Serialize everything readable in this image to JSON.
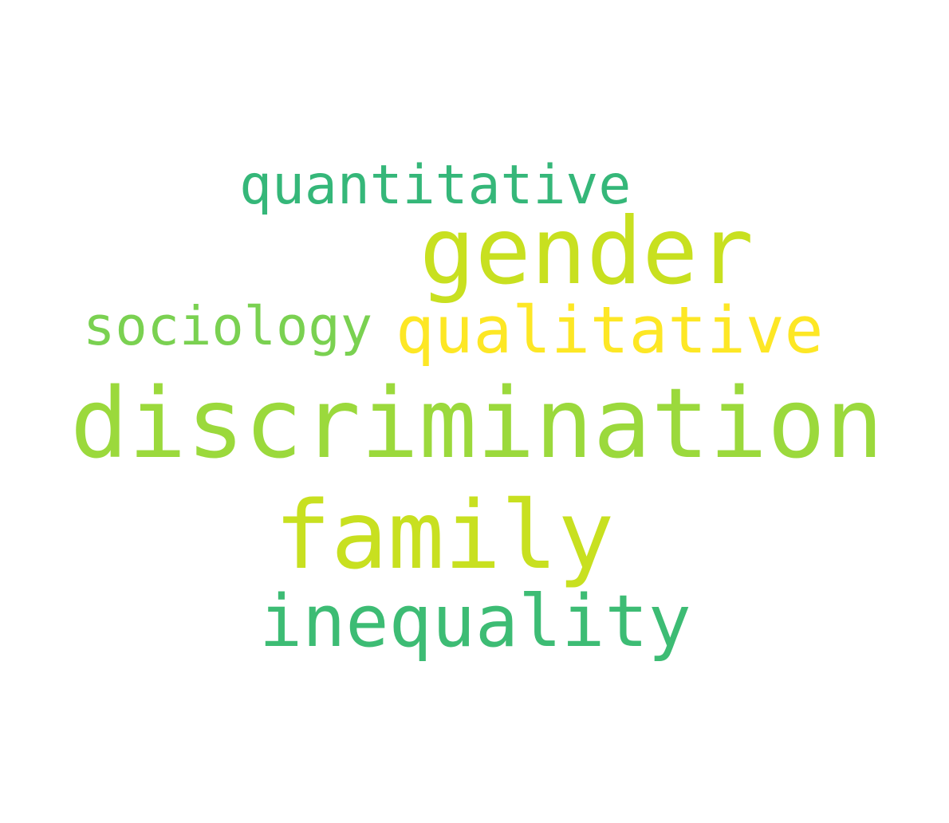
{
  "words": [
    {
      "text": "quantitative",
      "color": "#35b779"
    },
    {
      "text": "gender",
      "color": "#c8e020"
    },
    {
      "text": "sociology",
      "color": "#7ad151"
    },
    {
      "text": "qualitative",
      "color": "#fde725"
    },
    {
      "text": "discrimination",
      "color": "#9bd93c"
    },
    {
      "text": "family",
      "color": "#c8e020"
    },
    {
      "text": "inequality",
      "color": "#3dbc74"
    }
  ]
}
